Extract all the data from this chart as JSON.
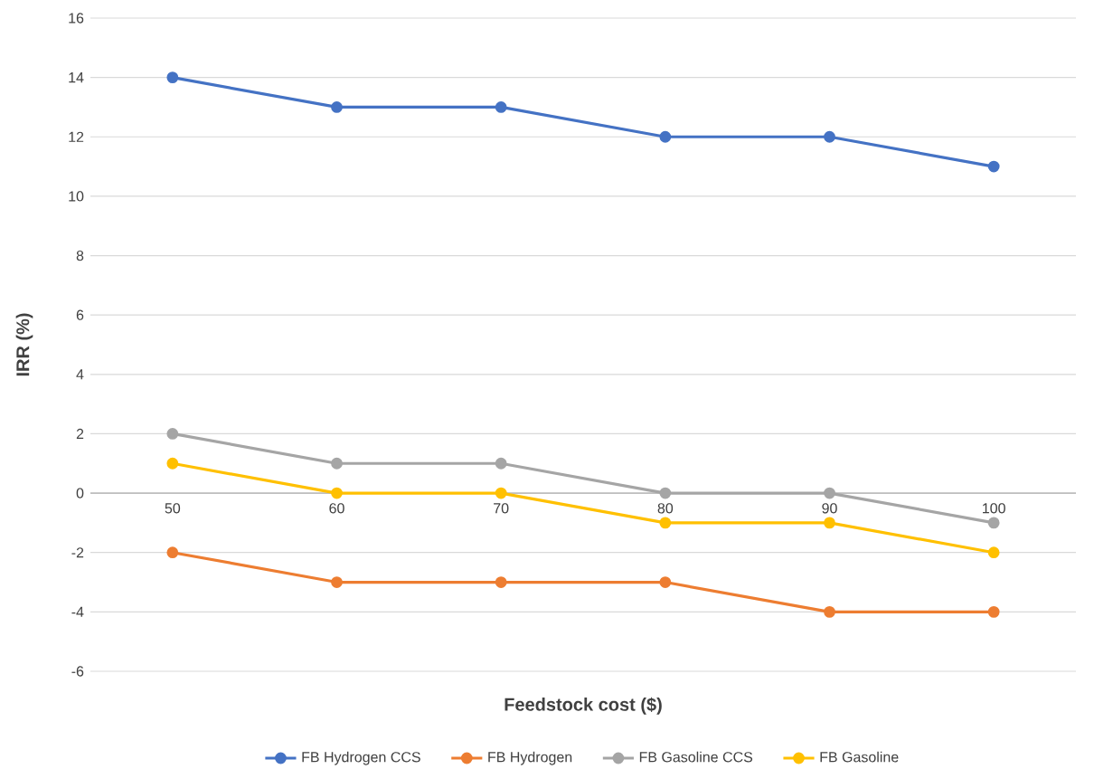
{
  "chart_data": {
    "type": "line",
    "xlabel": "Feedstock cost ($)",
    "ylabel": "IRR (%)",
    "categories": [
      "50",
      "60",
      "70",
      "80",
      "90",
      "100"
    ],
    "series": [
      {
        "name": "FB Hydrogen CCS",
        "color": "#4472c4",
        "values": [
          14,
          13,
          13,
          12,
          12,
          11
        ]
      },
      {
        "name": "FB Hydrogen",
        "color": "#ed7d31",
        "values": [
          -2,
          -3,
          -3,
          -3,
          -4,
          -4
        ]
      },
      {
        "name": "FB Gasoline CCS",
        "color": "#a5a5a5",
        "values": [
          2,
          1,
          1,
          0,
          0,
          -1
        ]
      },
      {
        "name": "FB Gasoline",
        "color": "#ffc000",
        "values": [
          1,
          0,
          0,
          -1,
          -1,
          -2
        ]
      }
    ],
    "ylim": [
      -6,
      16
    ],
    "yticks": [
      -6,
      -4,
      -2,
      0,
      2,
      4,
      6,
      8,
      10,
      12,
      14,
      16
    ],
    "grid": "y",
    "legend": "bottom",
    "marker": "circle",
    "line_style": "solid"
  }
}
